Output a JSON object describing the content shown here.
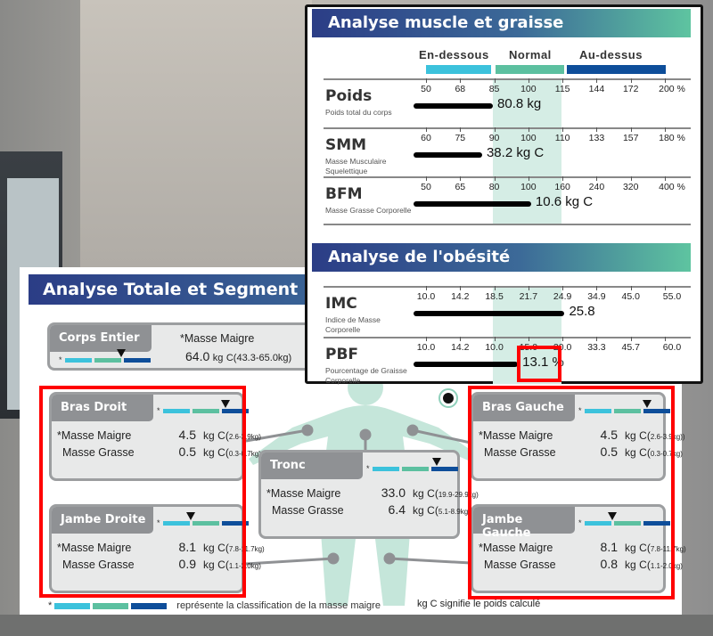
{
  "segmental": {
    "title": "Analyse Totale et Segment",
    "legend_star": "*",
    "legend_text": "représente la classification de la masse maigre",
    "legend_kgc": "kg C signifie le poids calculé",
    "whole": {
      "title": "Corps Entier",
      "lean_label": "*Masse Maigre",
      "lean_value": "64.0",
      "unit": "kg",
      "range": "C(43.3-65.0kg)",
      "marker": 0.66
    },
    "segments": [
      {
        "id": "bras-droit",
        "title": "Bras Droit",
        "marker": 0.73,
        "rows": [
          {
            "label": "*Masse Maigre",
            "value": "4.5",
            "unit": "kg",
            "range": "C(2.6-3.9kg)"
          },
          {
            "label": "Masse Grasse",
            "value": "0.5",
            "unit": "kg",
            "range": "C(0.3-0.7kg)"
          }
        ]
      },
      {
        "id": "jambe-droite",
        "title": "Jambe Droite",
        "marker": 0.33,
        "rows": [
          {
            "label": "*Masse Maigre",
            "value": "8.1",
            "unit": "kg",
            "range": "C(7.8-11.7kg)"
          },
          {
            "label": "Masse Grasse",
            "value": "0.9",
            "unit": "kg",
            "range": "C(1.1-2.0kg)"
          }
        ]
      },
      {
        "id": "tronc",
        "title": "Tronc",
        "marker": 0.75,
        "rows": [
          {
            "label": "*Masse Maigre",
            "value": "33.0",
            "unit": "kg",
            "range": "C(19.9-29.9kg)"
          },
          {
            "label": "Masse Grasse",
            "value": "6.4",
            "unit": "kg",
            "range": "C(5.1-8.9kg)"
          }
        ]
      },
      {
        "id": "bras-gauche",
        "title": "Bras Gauche",
        "marker": 0.73,
        "rows": [
          {
            "label": "*Masse Maigre",
            "value": "4.5",
            "unit": "kg",
            "range": "C(2.6-3.9kg))"
          },
          {
            "label": "Masse Grasse",
            "value": "0.5",
            "unit": "kg",
            "range": "C(0.3-0.7kg)"
          }
        ]
      },
      {
        "id": "jambe-gauche",
        "title": "Jambe Gauche",
        "marker": 0.33,
        "rows": [
          {
            "label": "*Masse Maigre",
            "value": "8.1",
            "unit": "kg",
            "range": "C(7.8-11.7kg)"
          },
          {
            "label": "Masse Grasse",
            "value": "0.8",
            "unit": "kg",
            "range": "C(1.1-2.0kg)"
          }
        ]
      }
    ]
  },
  "muscle_fat": {
    "title": "Analyse muscle et graisse",
    "categories": [
      "En-dessous",
      "Normal",
      "Au-dessus"
    ],
    "colors": {
      "below": "#3cc2dc",
      "normal": "#5cc0a0",
      "above": "#0e4e9a"
    },
    "rows": [
      {
        "label": "Poids",
        "sub": "Poids total du corps",
        "ticks": [
          "50",
          "68",
          "85",
          "100",
          "115",
          "144",
          "172",
          "200 %"
        ],
        "value": "80.8 kg",
        "level": 0.28
      },
      {
        "label": "SMM",
        "sub": "Masse Musculaire Squelettique",
        "ticks": [
          "60",
          "75",
          "90",
          "100",
          "110",
          "133",
          "157",
          "180 %"
        ],
        "value": "38.2 kg C",
        "level": 0.235
      },
      {
        "label": "BFM",
        "sub": "Masse Grasse Corporelle",
        "ticks": [
          "50",
          "65",
          "80",
          "100",
          "160",
          "240",
          "320",
          "400 %"
        ],
        "value": "10.6 kg C",
        "level": 0.44
      }
    ]
  },
  "obesity": {
    "title": "Analyse de l'obésité",
    "rows": [
      {
        "label": "IMC",
        "sub": "Indice de Masse Corporelle",
        "ticks": [
          "10.0",
          "14.2",
          "18.5",
          "21.7",
          "24.9",
          "34.9",
          "45.0",
          "55.0"
        ],
        "value": "25.8",
        "level": 0.58
      },
      {
        "label": "PBF",
        "sub": "Pourcentage de Graisse Corporelle",
        "ticks": [
          "10.0",
          "14.2",
          "10.0",
          "15.0",
          "20.0",
          "33.3",
          "45.7",
          "60.0"
        ],
        "value": "13.1 %",
        "level": 0.385
      }
    ]
  }
}
